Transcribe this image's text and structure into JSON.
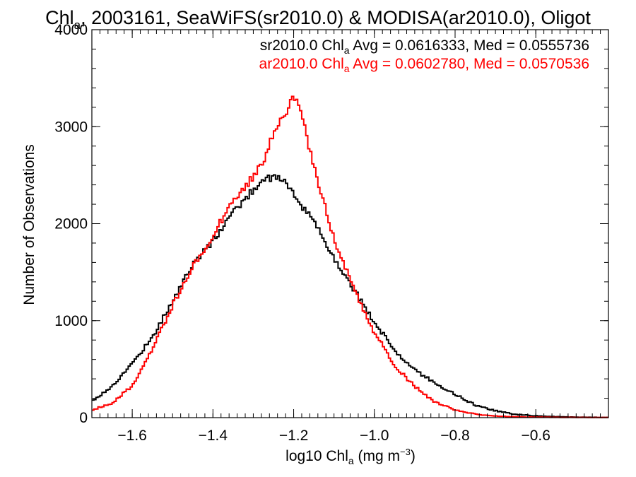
{
  "chart_data": {
    "type": "line",
    "step": true,
    "title_main": "Chl",
    "title_sub": "a",
    "title_rest": ", 2003161, SeaWiFS(sr2010.0) & MODISA(ar2010.0), Oligot",
    "xlabel_main": "log10 Chl",
    "xlabel_sub": "a",
    "xlabel_rest": " (mg m",
    "xlabel_sup": "−3",
    "xlabel_end": ")",
    "ylabel": "Number of Observations",
    "xlim": [
      -1.7,
      -0.42
    ],
    "ylim": [
      0,
      4000
    ],
    "xticks": [
      {
        "value": -1.6,
        "label": "−1.6"
      },
      {
        "value": -1.4,
        "label": "−1.4"
      },
      {
        "value": -1.2,
        "label": "−1.2"
      },
      {
        "value": -1.0,
        "label": "−1.0"
      },
      {
        "value": -0.8,
        "label": "−0.8"
      },
      {
        "value": -0.6,
        "label": "−0.6"
      }
    ],
    "yticks": [
      {
        "value": 0,
        "label": "0"
      },
      {
        "value": 1000,
        "label": "1000"
      },
      {
        "value": 2000,
        "label": "2000"
      },
      {
        "value": 3000,
        "label": "3000"
      },
      {
        "value": 4000,
        "label": "4000"
      }
    ],
    "grid": false,
    "legend_position": "top-right",
    "series": [
      {
        "name": "sr2010.0",
        "label_main": "sr2010.0 Chl",
        "label_sub": "a",
        "label_rest": " Avg = 0.0616333, Med = 0.0555736",
        "color": "#000000",
        "x": [
          -1.7,
          -1.65,
          -1.6,
          -1.55,
          -1.5,
          -1.45,
          -1.4,
          -1.35,
          -1.3,
          -1.27,
          -1.25,
          -1.22,
          -1.2,
          -1.18,
          -1.15,
          -1.1,
          -1.05,
          -1.0,
          -0.95,
          -0.9,
          -0.85,
          -0.8,
          -0.75,
          -0.7,
          -0.65,
          -0.6,
          -0.55,
          -0.5,
          -0.45,
          -0.42
        ],
        "y": [
          170,
          320,
          560,
          830,
          1200,
          1580,
          1820,
          2120,
          2350,
          2480,
          2470,
          2450,
          2300,
          2170,
          2030,
          1650,
          1320,
          980,
          700,
          490,
          360,
          240,
          130,
          70,
          35,
          18,
          10,
          5,
          3,
          2
        ]
      },
      {
        "name": "ar2010.0",
        "label_main": "ar2010.0 Chl",
        "label_sub": "a",
        "label_rest": " Avg = 0.0602780, Med = 0.0570536",
        "color": "#ff0000",
        "x": [
          -1.7,
          -1.65,
          -1.6,
          -1.55,
          -1.5,
          -1.45,
          -1.4,
          -1.35,
          -1.3,
          -1.27,
          -1.25,
          -1.22,
          -1.2,
          -1.18,
          -1.15,
          -1.1,
          -1.05,
          -1.0,
          -0.95,
          -0.9,
          -0.85,
          -0.8,
          -0.75,
          -0.7,
          -0.65,
          -0.6,
          -0.55,
          -0.5,
          -0.45,
          -0.42
        ],
        "y": [
          80,
          150,
          330,
          700,
          1160,
          1560,
          1880,
          2250,
          2480,
          2700,
          2920,
          3150,
          3320,
          3100,
          2600,
          1850,
          1310,
          880,
          540,
          320,
          160,
          80,
          35,
          15,
          8,
          5,
          3,
          2,
          1,
          1
        ]
      }
    ]
  }
}
